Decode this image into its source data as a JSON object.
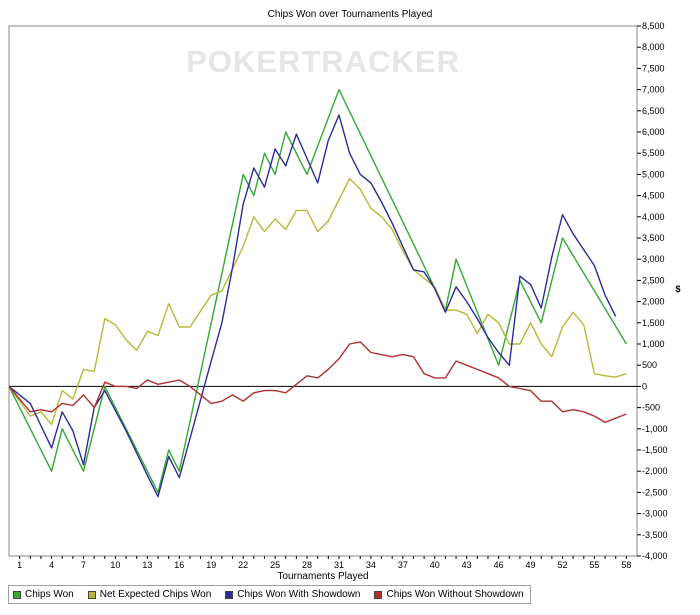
{
  "chart_data": {
    "type": "line",
    "title": "Chips Won over Tournaments Played",
    "watermark": "POKERTRACKER",
    "xlabel": "Tournaments Played",
    "ylabel": "$",
    "xlim": [
      0,
      59
    ],
    "ylim": [
      -4000,
      8500
    ],
    "x_ticks": [
      1,
      4,
      7,
      10,
      13,
      16,
      19,
      22,
      25,
      28,
      31,
      34,
      37,
      40,
      43,
      46,
      49,
      52,
      55,
      58
    ],
    "y_ticks": [
      -4000,
      -3500,
      -3000,
      -2500,
      -2000,
      -1500,
      -1000,
      -500,
      0,
      500,
      1000,
      1500,
      2000,
      2500,
      3000,
      3500,
      4000,
      4500,
      5000,
      5500,
      6000,
      6500,
      7000,
      7500,
      8000,
      8500
    ],
    "y_tick_labels": [
      "-4,000",
      "-3,500",
      "-3,000",
      "-2,500",
      "-2,000",
      "-1,500",
      "-1,000",
      "-500",
      "0",
      "500",
      "1,000",
      "1,500",
      "2,000",
      "2,500",
      "3,000",
      "3,500",
      "4,000",
      "4,500",
      "5,000",
      "5,500",
      "6,000",
      "6,500",
      "7,000",
      "7,500",
      "8,000",
      "8,500"
    ],
    "grid": false,
    "legend_position": "bottom",
    "series": [
      {
        "name": "Chips Won",
        "color": "#33aa33",
        "points": [
          [
            0,
            0
          ],
          [
            4,
            -2000
          ],
          [
            5,
            -1000
          ],
          [
            7,
            -2000
          ],
          [
            9,
            0
          ],
          [
            11,
            -1000
          ],
          [
            14,
            -2500
          ],
          [
            15,
            -1500
          ],
          [
            16,
            -2000
          ],
          [
            22,
            5000
          ],
          [
            23,
            4500
          ],
          [
            24,
            5500
          ],
          [
            25,
            5000
          ],
          [
            26,
            6000
          ],
          [
            28,
            5000
          ],
          [
            31,
            7000
          ],
          [
            41,
            1800
          ],
          [
            42,
            3000
          ],
          [
            46,
            500
          ],
          [
            48,
            2500
          ],
          [
            50,
            1500
          ],
          [
            52,
            3500
          ],
          [
            58,
            1000
          ]
        ]
      },
      {
        "name": "Net Expected Chips Won",
        "color": "#b8b83a",
        "points": [
          [
            0,
            0
          ],
          [
            2,
            -700
          ],
          [
            3,
            -600
          ],
          [
            4,
            -900
          ],
          [
            5,
            -100
          ],
          [
            6,
            -300
          ],
          [
            7,
            400
          ],
          [
            8,
            350
          ],
          [
            9,
            1600
          ],
          [
            10,
            1450
          ],
          [
            11,
            1100
          ],
          [
            12,
            850
          ],
          [
            13,
            1300
          ],
          [
            14,
            1200
          ],
          [
            15,
            1950
          ],
          [
            16,
            1400
          ],
          [
            17,
            1400
          ],
          [
            19,
            2150
          ],
          [
            20,
            2250
          ],
          [
            22,
            3300
          ],
          [
            23,
            4000
          ],
          [
            24,
            3650
          ],
          [
            25,
            3950
          ],
          [
            26,
            3700
          ],
          [
            27,
            4150
          ],
          [
            28,
            4150
          ],
          [
            29,
            3650
          ],
          [
            30,
            3900
          ],
          [
            32,
            4900
          ],
          [
            33,
            4650
          ],
          [
            34,
            4200
          ],
          [
            35,
            4000
          ],
          [
            36,
            3700
          ],
          [
            37,
            3200
          ],
          [
            38,
            2750
          ],
          [
            40,
            2350
          ],
          [
            41,
            1800
          ],
          [
            42,
            1800
          ],
          [
            43,
            1700
          ],
          [
            44,
            1250
          ],
          [
            45,
            1700
          ],
          [
            46,
            1500
          ],
          [
            47,
            1000
          ],
          [
            48,
            1000
          ],
          [
            49,
            1500
          ],
          [
            50,
            1000
          ],
          [
            51,
            700
          ],
          [
            52,
            1400
          ],
          [
            53,
            1750
          ],
          [
            54,
            1450
          ],
          [
            55,
            300
          ],
          [
            56,
            250
          ],
          [
            57,
            220
          ],
          [
            58,
            300
          ]
        ]
      },
      {
        "name": "Chips Won With Showdown",
        "color": "#2b2b9a",
        "points": [
          [
            0,
            0
          ],
          [
            2,
            -400
          ],
          [
            4,
            -1450
          ],
          [
            5,
            -600
          ],
          [
            6,
            -1050
          ],
          [
            7,
            -1850
          ],
          [
            8,
            -500
          ],
          [
            9,
            -100
          ],
          [
            11,
            -1050
          ],
          [
            13,
            -2100
          ],
          [
            14,
            -2600
          ],
          [
            15,
            -1650
          ],
          [
            16,
            -2150
          ],
          [
            19,
            600
          ],
          [
            20,
            1500
          ],
          [
            21,
            2800
          ],
          [
            22,
            4300
          ],
          [
            23,
            5150
          ],
          [
            24,
            4700
          ],
          [
            25,
            5600
          ],
          [
            26,
            5200
          ],
          [
            27,
            5950
          ],
          [
            29,
            4800
          ],
          [
            30,
            5800
          ],
          [
            31,
            6400
          ],
          [
            32,
            5500
          ],
          [
            33,
            5000
          ],
          [
            34,
            4800
          ],
          [
            35,
            4350
          ],
          [
            36,
            3850
          ],
          [
            37,
            3300
          ],
          [
            38,
            2750
          ],
          [
            39,
            2700
          ],
          [
            40,
            2300
          ],
          [
            41,
            1750
          ],
          [
            42,
            2350
          ],
          [
            43,
            2000
          ],
          [
            44,
            1600
          ],
          [
            45,
            1150
          ],
          [
            46,
            800
          ],
          [
            47,
            500
          ],
          [
            48,
            2600
          ],
          [
            49,
            2400
          ],
          [
            50,
            1850
          ],
          [
            51,
            3050
          ],
          [
            52,
            4050
          ],
          [
            53,
            3600
          ],
          [
            55,
            2850
          ],
          [
            56,
            2150
          ],
          [
            57,
            1650
          ]
        ]
      },
      {
        "name": "Chips Won Without Showdown",
        "color": "#b03030",
        "points": [
          [
            0,
            0
          ],
          [
            2,
            -600
          ],
          [
            3,
            -550
          ],
          [
            4,
            -600
          ],
          [
            5,
            -400
          ],
          [
            6,
            -450
          ],
          [
            7,
            -200
          ],
          [
            8,
            -500
          ],
          [
            9,
            100
          ],
          [
            10,
            0
          ],
          [
            11,
            0
          ],
          [
            12,
            -50
          ],
          [
            13,
            150
          ],
          [
            14,
            50
          ],
          [
            15,
            100
          ],
          [
            16,
            150
          ],
          [
            17,
            0
          ],
          [
            18,
            -200
          ],
          [
            19,
            -400
          ],
          [
            20,
            -350
          ],
          [
            21,
            -200
          ],
          [
            22,
            -350
          ],
          [
            23,
            -150
          ],
          [
            24,
            -100
          ],
          [
            25,
            -100
          ],
          [
            26,
            -150
          ],
          [
            27,
            50
          ],
          [
            28,
            250
          ],
          [
            29,
            200
          ],
          [
            30,
            400
          ],
          [
            31,
            650
          ],
          [
            32,
            1000
          ],
          [
            33,
            1050
          ],
          [
            34,
            800
          ],
          [
            35,
            750
          ],
          [
            36,
            700
          ],
          [
            37,
            750
          ],
          [
            38,
            700
          ],
          [
            39,
            300
          ],
          [
            40,
            200
          ],
          [
            41,
            200
          ],
          [
            42,
            600
          ],
          [
            43,
            500
          ],
          [
            44,
            400
          ],
          [
            45,
            300
          ],
          [
            46,
            200
          ],
          [
            47,
            0
          ],
          [
            48,
            -50
          ],
          [
            49,
            -100
          ],
          [
            50,
            -350
          ],
          [
            51,
            -350
          ],
          [
            52,
            -600
          ],
          [
            53,
            -550
          ],
          [
            54,
            -600
          ],
          [
            55,
            -700
          ],
          [
            56,
            -850
          ],
          [
            57,
            -750
          ],
          [
            58,
            -650
          ]
        ]
      }
    ]
  }
}
